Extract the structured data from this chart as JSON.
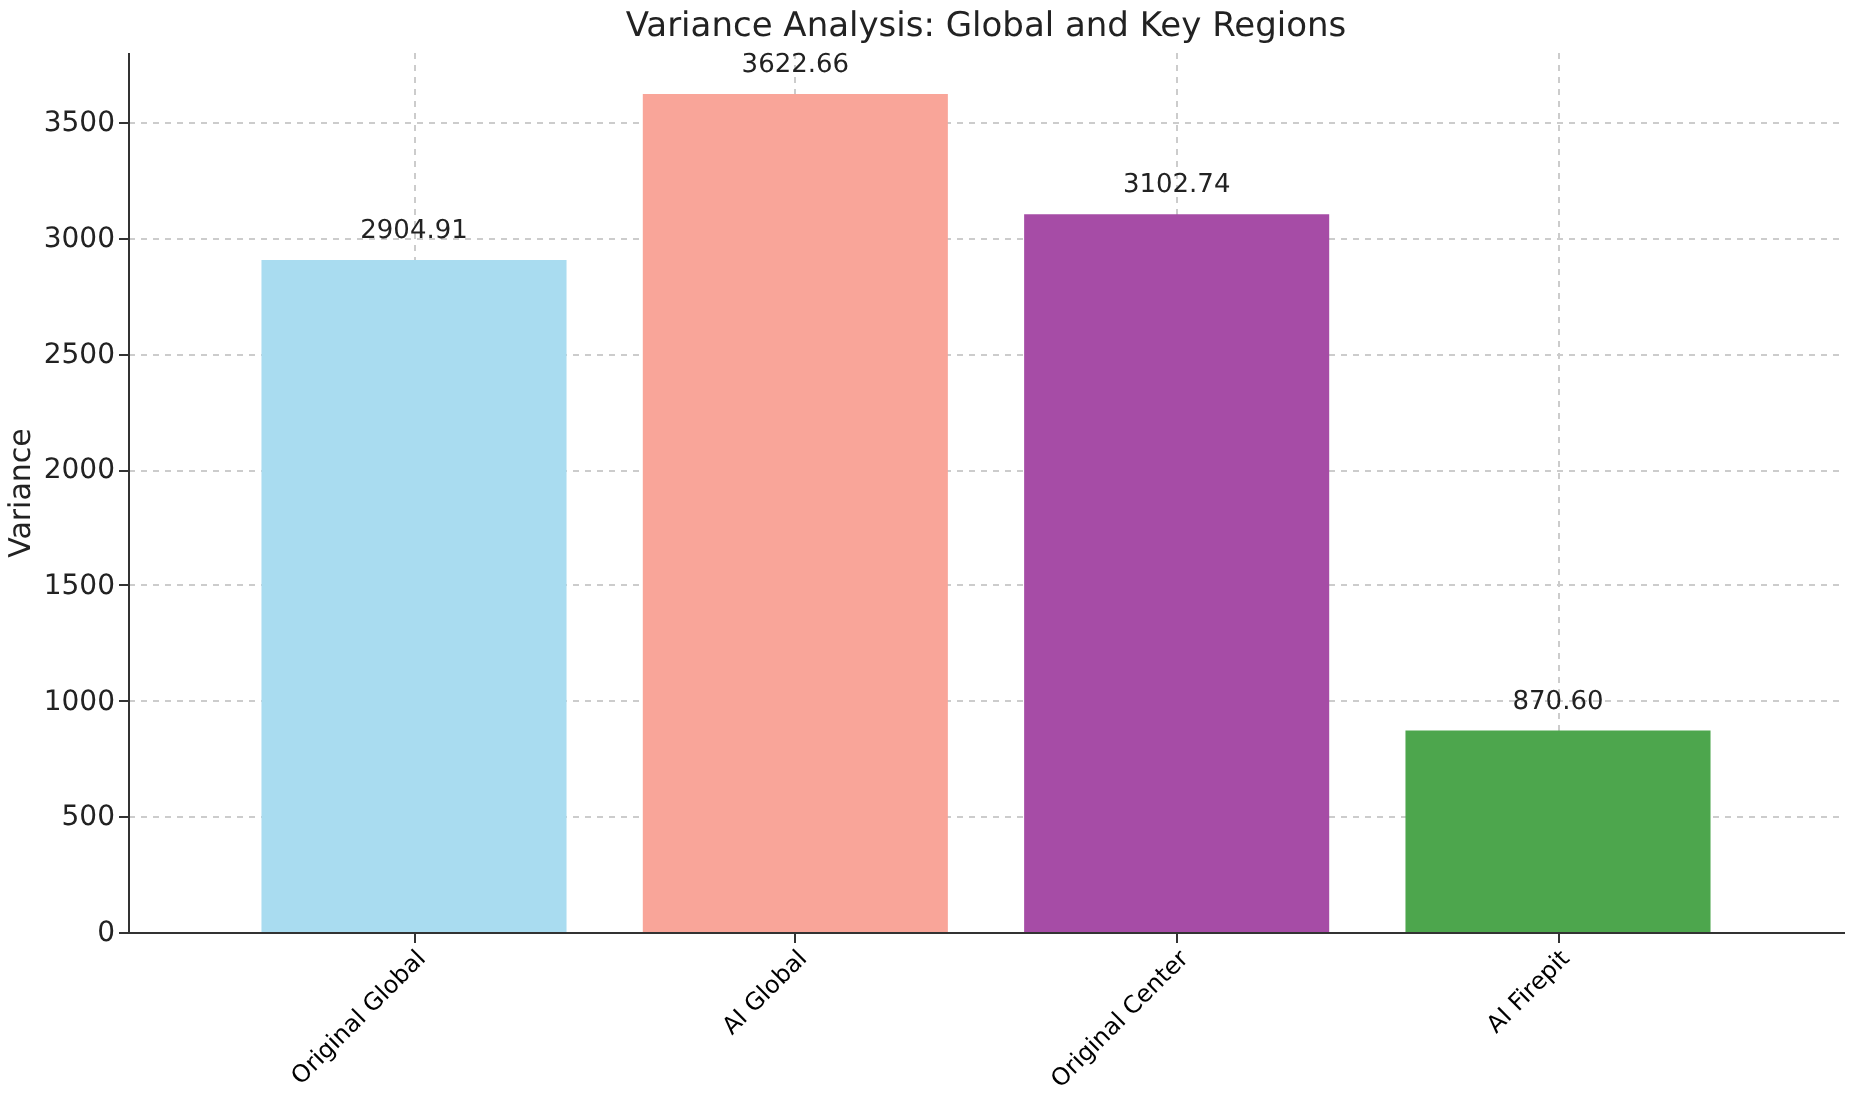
{
  "chart_data": {
    "type": "bar",
    "title": "Variance Analysis: Global and Key Regions",
    "ylabel": "Variance",
    "categories": [
      "Original Global",
      "AI Global",
      "Original Center",
      "AI Firepit"
    ],
    "values": [
      2904.91,
      3622.66,
      3102.74,
      870.6
    ],
    "value_labels": [
      "2904.91",
      "3622.66",
      "3102.74",
      "870.60"
    ],
    "colors": [
      "#a9dcf0",
      "#f9a599",
      "#a64ca6",
      "#4da64d"
    ],
    "ylim": [
      0,
      3804
    ],
    "yticks": [
      0,
      500,
      1000,
      1500,
      2000,
      2500,
      3000,
      3500
    ],
    "grid": true
  }
}
